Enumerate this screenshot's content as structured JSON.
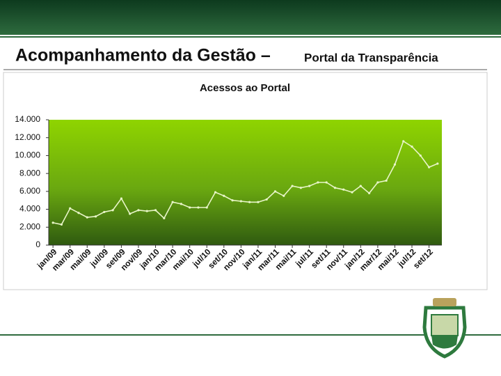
{
  "slide_title": {
    "main": "Acompanhamento da Gestão –",
    "sub": "Portal da Transparência"
  },
  "chart_data": {
    "type": "line",
    "title": "Acessos ao Portal",
    "categories": [
      "jan/09",
      null,
      "mar/09",
      null,
      "mai/09",
      null,
      "jul/09",
      null,
      "set/09",
      null,
      "nov/09",
      null,
      "jan/10",
      null,
      "mar/10",
      null,
      "mai/10",
      null,
      "jul/10",
      null,
      "set/10",
      null,
      "nov/10",
      null,
      "jan/11",
      null,
      "mar/11",
      null,
      "mai/11",
      null,
      "jul/11",
      null,
      "set/11",
      null,
      "nov/11",
      null,
      "jan/12",
      null,
      "mar/12",
      null,
      "mai/12",
      null,
      "jul/12",
      null,
      "set/12",
      null
    ],
    "series": [
      {
        "name": "Acessos",
        "color": "#e8f5c8",
        "values": [
          2500,
          2300,
          4100,
          3600,
          3100,
          3200,
          3700,
          3900,
          5200,
          3500,
          3900,
          3800,
          3900,
          3000,
          4800,
          4600,
          4200,
          4200,
          4200,
          5900,
          5500,
          5000,
          4900,
          4800,
          4800,
          5100,
          6000,
          5500,
          6600,
          6400,
          6600,
          7000,
          7000,
          6400,
          6200,
          5900,
          6600,
          5800,
          7000,
          7200,
          9000,
          11600,
          11000,
          10000,
          8700,
          9100
        ]
      }
    ],
    "ylim": [
      0,
      14000
    ],
    "yticks": [
      0,
      {
        "value": 2000,
        "label": "2.000"
      },
      {
        "value": 4000,
        "label": "4.000"
      },
      {
        "value": 6000,
        "label": "6.000"
      },
      {
        "value": 8000,
        "label": "8.000"
      },
      {
        "value": 10000,
        "label": "10.000"
      },
      {
        "value": 12000,
        "label": "12.000"
      },
      {
        "value": 14000,
        "label": "14.000"
      }
    ]
  }
}
